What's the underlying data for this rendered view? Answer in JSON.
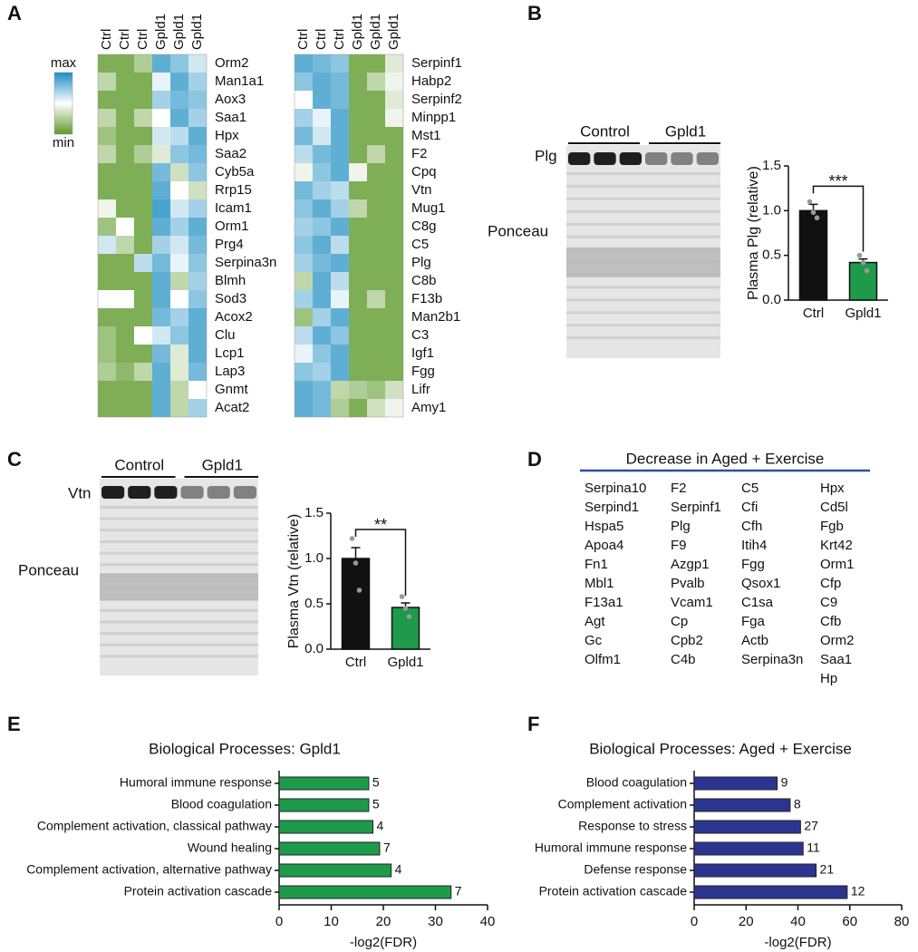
{
  "panel_labels": [
    "A",
    "B",
    "C",
    "D",
    "E",
    "F"
  ],
  "chart_data": [
    {
      "type": "heatmap",
      "columns": [
        "Ctrl",
        "Ctrl",
        "Ctrl",
        "Gpld1",
        "Gpld1",
        "Gpld1"
      ],
      "rows": [
        "Orm2",
        "Man1a1",
        "Aox3",
        "Saa1",
        "Hpx",
        "Saa2",
        "Cyb5a",
        "Rrp15",
        "Icam1",
        "Orm1",
        "Prg4",
        "Serpina3n",
        "Blmh",
        "Sod3",
        "Acox2",
        "Clu",
        "Lcp1",
        "Lap3",
        "Gnmt",
        "Acat2"
      ],
      "values": [
        [
          0.1,
          0.1,
          0.25,
          0.85,
          0.75,
          0.6
        ],
        [
          0.3,
          0.1,
          0.1,
          0.55,
          0.85,
          0.7
        ],
        [
          0.1,
          0.1,
          0.1,
          0.7,
          0.8,
          0.75
        ],
        [
          0.3,
          0.1,
          0.3,
          0.5,
          0.85,
          0.7
        ],
        [
          0.2,
          0.1,
          0.1,
          0.6,
          0.65,
          0.85
        ],
        [
          0.3,
          0.1,
          0.25,
          0.4,
          0.75,
          0.8
        ],
        [
          0.1,
          0.1,
          0.1,
          0.8,
          0.35,
          0.75
        ],
        [
          0.1,
          0.1,
          0.1,
          0.85,
          0.5,
          0.35
        ],
        [
          0.45,
          0.1,
          0.1,
          0.9,
          0.6,
          0.7
        ],
        [
          0.2,
          0.5,
          0.1,
          0.85,
          0.7,
          0.85
        ],
        [
          0.6,
          0.3,
          0.1,
          0.7,
          0.6,
          0.8
        ],
        [
          0.1,
          0.1,
          0.65,
          0.8,
          0.55,
          0.75
        ],
        [
          0.1,
          0.1,
          0.1,
          0.85,
          0.3,
          0.7
        ],
        [
          0.5,
          0.5,
          0.1,
          0.85,
          0.5,
          0.75
        ],
        [
          0.1,
          0.1,
          0.1,
          0.8,
          0.7,
          0.85
        ],
        [
          0.2,
          0.1,
          0.5,
          0.6,
          0.75,
          0.85
        ],
        [
          0.2,
          0.1,
          0.1,
          0.8,
          0.4,
          0.85
        ],
        [
          0.25,
          0.15,
          0.3,
          0.85,
          0.4,
          0.8
        ],
        [
          0.1,
          0.1,
          0.1,
          0.85,
          0.3,
          0.5
        ],
        [
          0.1,
          0.1,
          0.1,
          0.85,
          0.3,
          0.7
        ]
      ],
      "vlim": [
        0,
        1
      ],
      "colormap": [
        "#5e9a2c",
        "#ffffff",
        "#1b8cc3"
      ],
      "colorbar_labels": [
        "max",
        "min"
      ]
    },
    {
      "type": "heatmap",
      "columns": [
        "Ctrl",
        "Ctrl",
        "Ctrl",
        "Gpld1",
        "Gpld1",
        "Gpld1"
      ],
      "rows": [
        "Serpinf1",
        "Habp2",
        "Serpinf2",
        "Minpp1",
        "Mst1",
        "F2",
        "Cpq",
        "Vtn",
        "Mug1",
        "C8g",
        "C5",
        "Plg",
        "C8b",
        "F13b",
        "Man2b1",
        "C3",
        "Igf1",
        "Fgg",
        "Lifr",
        "Amy1"
      ],
      "values": [
        [
          0.85,
          0.8,
          0.75,
          0.1,
          0.1,
          0.4
        ],
        [
          0.75,
          0.85,
          0.8,
          0.1,
          0.3,
          0.45
        ],
        [
          0.5,
          0.85,
          0.8,
          0.1,
          0.1,
          0.4
        ],
        [
          0.7,
          0.55,
          0.85,
          0.1,
          0.1,
          0.45
        ],
        [
          0.8,
          0.6,
          0.85,
          0.1,
          0.1,
          0.1
        ],
        [
          0.65,
          0.8,
          0.85,
          0.1,
          0.3,
          0.1
        ],
        [
          0.45,
          0.75,
          0.85,
          0.45,
          0.1,
          0.1
        ],
        [
          0.8,
          0.7,
          0.65,
          0.1,
          0.1,
          0.1
        ],
        [
          0.75,
          0.85,
          0.7,
          0.3,
          0.1,
          0.1
        ],
        [
          0.7,
          0.75,
          0.85,
          0.1,
          0.1,
          0.1
        ],
        [
          0.75,
          0.85,
          0.65,
          0.1,
          0.1,
          0.1
        ],
        [
          0.7,
          0.8,
          0.85,
          0.1,
          0.1,
          0.1
        ],
        [
          0.3,
          0.85,
          0.65,
          0.1,
          0.1,
          0.1
        ],
        [
          0.7,
          0.85,
          0.55,
          0.1,
          0.3,
          0.1
        ],
        [
          0.2,
          0.7,
          0.85,
          0.1,
          0.1,
          0.1
        ],
        [
          0.65,
          0.85,
          0.75,
          0.1,
          0.1,
          0.1
        ],
        [
          0.55,
          0.75,
          0.85,
          0.1,
          0.1,
          0.1
        ],
        [
          0.75,
          0.7,
          0.85,
          0.1,
          0.1,
          0.1
        ],
        [
          0.85,
          0.8,
          0.3,
          0.25,
          0.2,
          0.35
        ],
        [
          0.85,
          0.8,
          0.25,
          0.1,
          0.35,
          0.45
        ]
      ],
      "vlim": [
        0,
        1
      ],
      "colormap": [
        "#5e9a2c",
        "#ffffff",
        "#1b8cc3"
      ]
    },
    {
      "type": "bar",
      "categories": [
        "Ctrl",
        "Gpld1"
      ],
      "values": [
        1.0,
        0.42
      ],
      "errors": [
        0.07,
        0.04
      ],
      "points": [
        [
          1.1,
          0.98,
          0.92
        ],
        [
          0.5,
          0.42,
          0.33
        ]
      ],
      "colors": [
        "#111111",
        "#1e9a4a"
      ],
      "ylabel": "Plasma Plg (relative)",
      "ylim": [
        0,
        1.5
      ],
      "yticks": [
        {
          "value": 0,
          "label": "0.0"
        },
        {
          "value": 0.5,
          "label": "0.5"
        },
        {
          "value": 1,
          "label": "1.0"
        },
        {
          "value": 1.5,
          "label": "1.5"
        }
      ],
      "significance": "***"
    },
    {
      "type": "bar",
      "categories": [
        "Ctrl",
        "Gpld1"
      ],
      "values": [
        1.0,
        0.46
      ],
      "errors": [
        0.12,
        0.05
      ],
      "points": [
        [
          1.22,
          0.95,
          0.65
        ],
        [
          0.58,
          0.45,
          0.36
        ]
      ],
      "colors": [
        "#111111",
        "#1e9a4a"
      ],
      "ylabel": "Plasma Vtn (relative)",
      "ylim": [
        0,
        1.5
      ],
      "yticks": [
        {
          "value": 0,
          "label": "0.0"
        },
        {
          "value": 0.5,
          "label": "0.5"
        },
        {
          "value": 1,
          "label": "1.0"
        },
        {
          "value": 1.5,
          "label": "1.5"
        }
      ],
      "significance": "**"
    },
    {
      "type": "barh",
      "title": "Biological Processes: Gpld1",
      "categories": [
        "Humoral immune response",
        "Blood coagulation",
        "Complement activation, classical pathway",
        "Wound healing",
        "Complement activation, alternative pathway",
        "Protein activation cascade"
      ],
      "values": [
        17.2,
        17.2,
        18,
        19.3,
        21.5,
        33
      ],
      "counts": [
        5,
        5,
        4,
        7,
        4,
        7
      ],
      "color": "#1e9a4a",
      "xlabel": "-log2(FDR)",
      "xlim": [
        0,
        40
      ],
      "xticks": [
        0,
        10,
        20,
        30,
        40
      ]
    },
    {
      "type": "barh",
      "title": "Biological Processes: Aged + Exercise",
      "categories": [
        "Blood coagulation",
        "Complement activation",
        "Response to stress",
        "Humoral immune response",
        "Defense response",
        "Protein activation cascade"
      ],
      "values": [
        32,
        37,
        41,
        42,
        47,
        59
      ],
      "counts": [
        9,
        8,
        27,
        11,
        21,
        12
      ],
      "color": "#2b3590",
      "xlabel": "-log2(FDR)",
      "xlim": [
        0,
        80
      ],
      "xticks": [
        0,
        20,
        40,
        60,
        80
      ]
    }
  ],
  "blots": [
    {
      "groups": [
        "Control",
        "Gpld1"
      ],
      "band": "Plg",
      "stain": "Ponceau"
    },
    {
      "groups": [
        "Control",
        "Gpld1"
      ],
      "band": "Vtn",
      "stain": "Ponceau"
    }
  ],
  "gene_list": {
    "title": "Decrease in Aged + Exercise",
    "columns": [
      [
        "Serpina10",
        "Serpind1",
        "Hspa5",
        "Apoa4",
        "Fn1",
        "Mbl1",
        "F13a1",
        "Agt",
        "Gc",
        "Olfm1"
      ],
      [
        "F2",
        "Serpinf1",
        "Plg",
        "F9",
        "Azgp1",
        "Pvalb",
        "Vcam1",
        "Cp",
        "Cpb2",
        "C4b"
      ],
      [
        "C5",
        "Cfi",
        "Cfh",
        "Itih4",
        "Fgg",
        "Qsox1",
        "C1sa",
        "Fga",
        "Actb",
        "Serpina3n"
      ],
      [
        "Hpx",
        "Cd5l",
        "Fgb",
        "Krt42",
        "Orm1",
        "Cfp",
        "C9",
        "Cfb",
        "Orm2",
        "Saa1",
        "Hp"
      ]
    ]
  }
}
